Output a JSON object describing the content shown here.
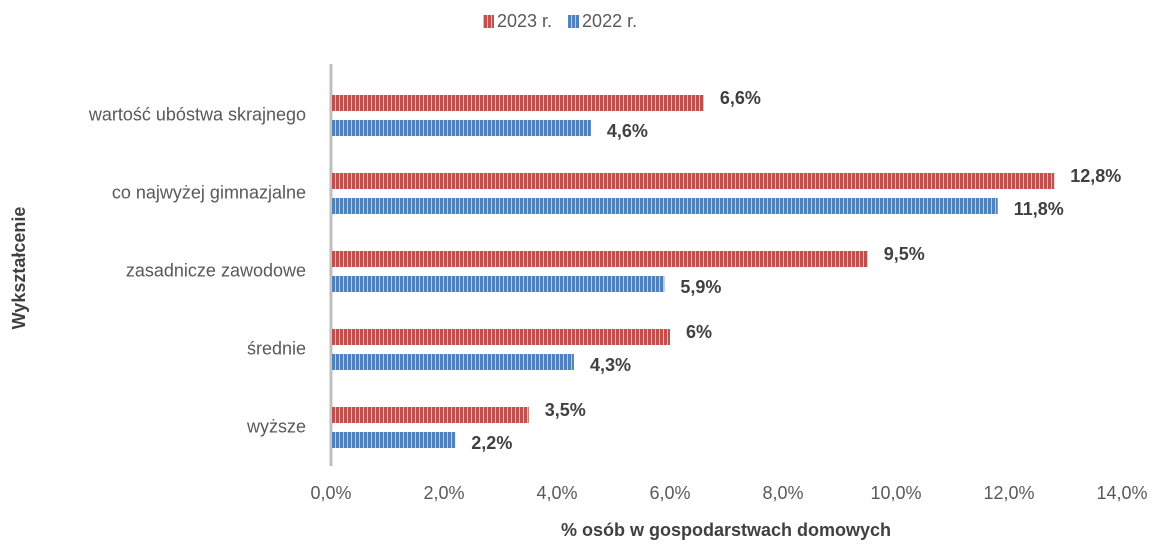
{
  "chart_data": {
    "type": "hbar",
    "categories": [
      "wartość ubóstwa skrajnego",
      "co najwyżej gimnazjalne",
      "zasadnicze zawodowe",
      "średnie",
      "wyższe"
    ],
    "series": [
      {
        "name": "2023 r.",
        "color": "#c0504d",
        "values": [
          6.6,
          12.8,
          9.5,
          6,
          3.5
        ],
        "value_labels": [
          "6,6%",
          "12,8%",
          "9,5%",
          "6%",
          "3,5%"
        ]
      },
      {
        "name": "2022 r.",
        "color": "#4f81bd",
        "values": [
          4.6,
          11.8,
          5.9,
          4.3,
          2.2
        ],
        "value_labels": [
          "4,6%",
          "11,8%",
          "5,9%",
          "4,3%",
          "2,2%"
        ]
      }
    ],
    "xlim": [
      0,
      14
    ],
    "xticks": [
      {
        "value": 0,
        "label": "0,0%"
      },
      {
        "value": 2,
        "label": "2,0%"
      },
      {
        "value": 4,
        "label": "4,0%"
      },
      {
        "value": 6,
        "label": "6,0%"
      },
      {
        "value": 8,
        "label": "8,0%"
      },
      {
        "value": 10,
        "label": "10,0%"
      },
      {
        "value": 12,
        "label": "12,0%"
      },
      {
        "value": 14,
        "label": "14,0%"
      }
    ],
    "x_label": "% osób w gospodarstwach domowych",
    "y_label": "Wykształcenie",
    "legend": "top"
  }
}
